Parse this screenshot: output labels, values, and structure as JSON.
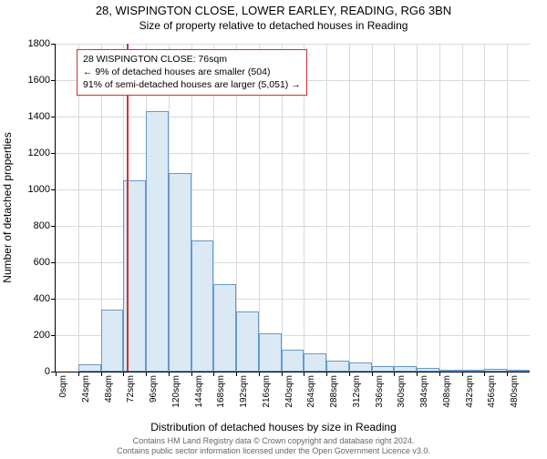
{
  "title": "28, WISPINGTON CLOSE, LOWER EARLEY, READING, RG6 3BN",
  "subtitle": "Size of property relative to detached houses in Reading",
  "chart": {
    "type": "histogram",
    "y_axis_label": "Number of detached properties",
    "x_axis_label": "Distribution of detached houses by size in Reading",
    "ylim": [
      0,
      1800
    ],
    "ytick_step": 200,
    "y_ticks": [
      0,
      200,
      400,
      600,
      800,
      1000,
      1200,
      1400,
      1600,
      1800
    ],
    "x_categories": [
      "0sqm",
      "24sqm",
      "48sqm",
      "72sqm",
      "96sqm",
      "120sqm",
      "144sqm",
      "168sqm",
      "192sqm",
      "216sqm",
      "240sqm",
      "264sqm",
      "288sqm",
      "312sqm",
      "336sqm",
      "360sqm",
      "384sqm",
      "408sqm",
      "432sqm",
      "456sqm",
      "480sqm"
    ],
    "bar_values": [
      0,
      40,
      340,
      1050,
      1430,
      1090,
      720,
      480,
      330,
      210,
      120,
      100,
      60,
      50,
      30,
      30,
      20,
      10,
      10,
      15,
      10
    ],
    "bar_fill_color": "#dbe9f5",
    "bar_border_color": "#6699cc",
    "grid_color": "#d9d9d9",
    "background_color": "#ffffff",
    "marker": {
      "position_sqm": 76,
      "color": "#cc3333"
    },
    "legend": {
      "line1": "28 WISPINGTON CLOSE: 76sqm",
      "line2": "← 9% of detached houses are smaller (504)",
      "line3": "91% of semi-detached houses are larger (5,051) →",
      "border_color": "#cc3333"
    }
  },
  "footer": {
    "line1": "Contains HM Land Registry data © Crown copyright and database right 2024.",
    "line2": "Contains public sector information licensed under the Open Government Licence v3.0."
  }
}
